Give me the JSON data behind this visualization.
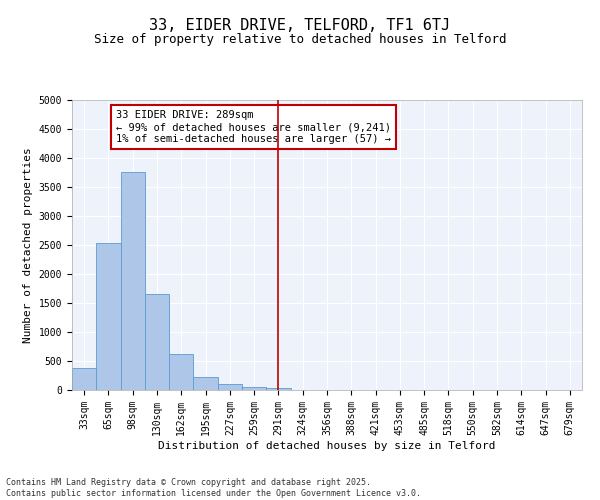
{
  "title": "33, EIDER DRIVE, TELFORD, TF1 6TJ",
  "subtitle": "Size of property relative to detached houses in Telford",
  "xlabel": "Distribution of detached houses by size in Telford",
  "ylabel": "Number of detached properties",
  "categories": [
    "33sqm",
    "65sqm",
    "98sqm",
    "130sqm",
    "162sqm",
    "195sqm",
    "227sqm",
    "259sqm",
    "291sqm",
    "324sqm",
    "356sqm",
    "388sqm",
    "421sqm",
    "453sqm",
    "485sqm",
    "518sqm",
    "550sqm",
    "582sqm",
    "614sqm",
    "647sqm",
    "679sqm"
  ],
  "values": [
    380,
    2530,
    3760,
    1650,
    620,
    230,
    100,
    55,
    30,
    0,
    0,
    0,
    0,
    0,
    0,
    0,
    0,
    0,
    0,
    0,
    0
  ],
  "bar_color": "#aec6e8",
  "bar_edge_color": "#5b9bd5",
  "vline_x": 8,
  "vline_color": "#c00000",
  "annotation_text": "33 EIDER DRIVE: 289sqm\n← 99% of detached houses are smaller (9,241)\n1% of semi-detached houses are larger (57) →",
  "annotation_box_color": "#c00000",
  "ylim": [
    0,
    5000
  ],
  "yticks": [
    0,
    500,
    1000,
    1500,
    2000,
    2500,
    3000,
    3500,
    4000,
    4500,
    5000
  ],
  "background_color": "#eef2fb",
  "grid_color": "#ffffff",
  "footer_line1": "Contains HM Land Registry data © Crown copyright and database right 2025.",
  "footer_line2": "Contains public sector information licensed under the Open Government Licence v3.0.",
  "title_fontsize": 11,
  "subtitle_fontsize": 9,
  "axis_label_fontsize": 8,
  "tick_fontsize": 7,
  "annotation_fontsize": 7.5,
  "footer_fontsize": 6
}
